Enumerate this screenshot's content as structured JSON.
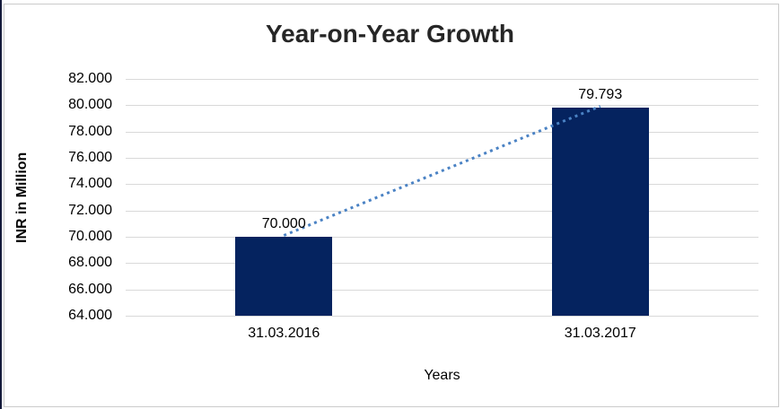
{
  "frame": {
    "border_color": "#cbcbcb",
    "left_edge_color": "#141a3a"
  },
  "chart_data": {
    "type": "bar",
    "title": "Year-on-Year Growth",
    "categories": [
      "31.03.2016",
      "31.03.2017"
    ],
    "series": [
      {
        "name": "INR in Million",
        "values": [
          70.0,
          79.793
        ]
      }
    ],
    "value_labels": [
      "70.000",
      "79.793"
    ],
    "xlabel": "Years",
    "ylabel": "INR in Million",
    "ylim": [
      64,
      82
    ],
    "ytick_step": 2,
    "ytick_values": [
      82,
      80,
      78,
      76,
      74,
      72,
      70,
      68,
      66,
      64
    ],
    "ytick_labels": [
      "82.000",
      "80.000",
      "78.000",
      "76.000",
      "74.000",
      "72.000",
      "70.000",
      "68.000",
      "66.000",
      "64.000"
    ],
    "grid": "horizontal",
    "grid_color": "#d9d9d9",
    "legend": "none",
    "bar_color": "#05235f",
    "bar_width_fraction": 0.153,
    "trendline": {
      "style": "dotted",
      "color": "#4a82c4",
      "connects": "bar-tops"
    }
  }
}
